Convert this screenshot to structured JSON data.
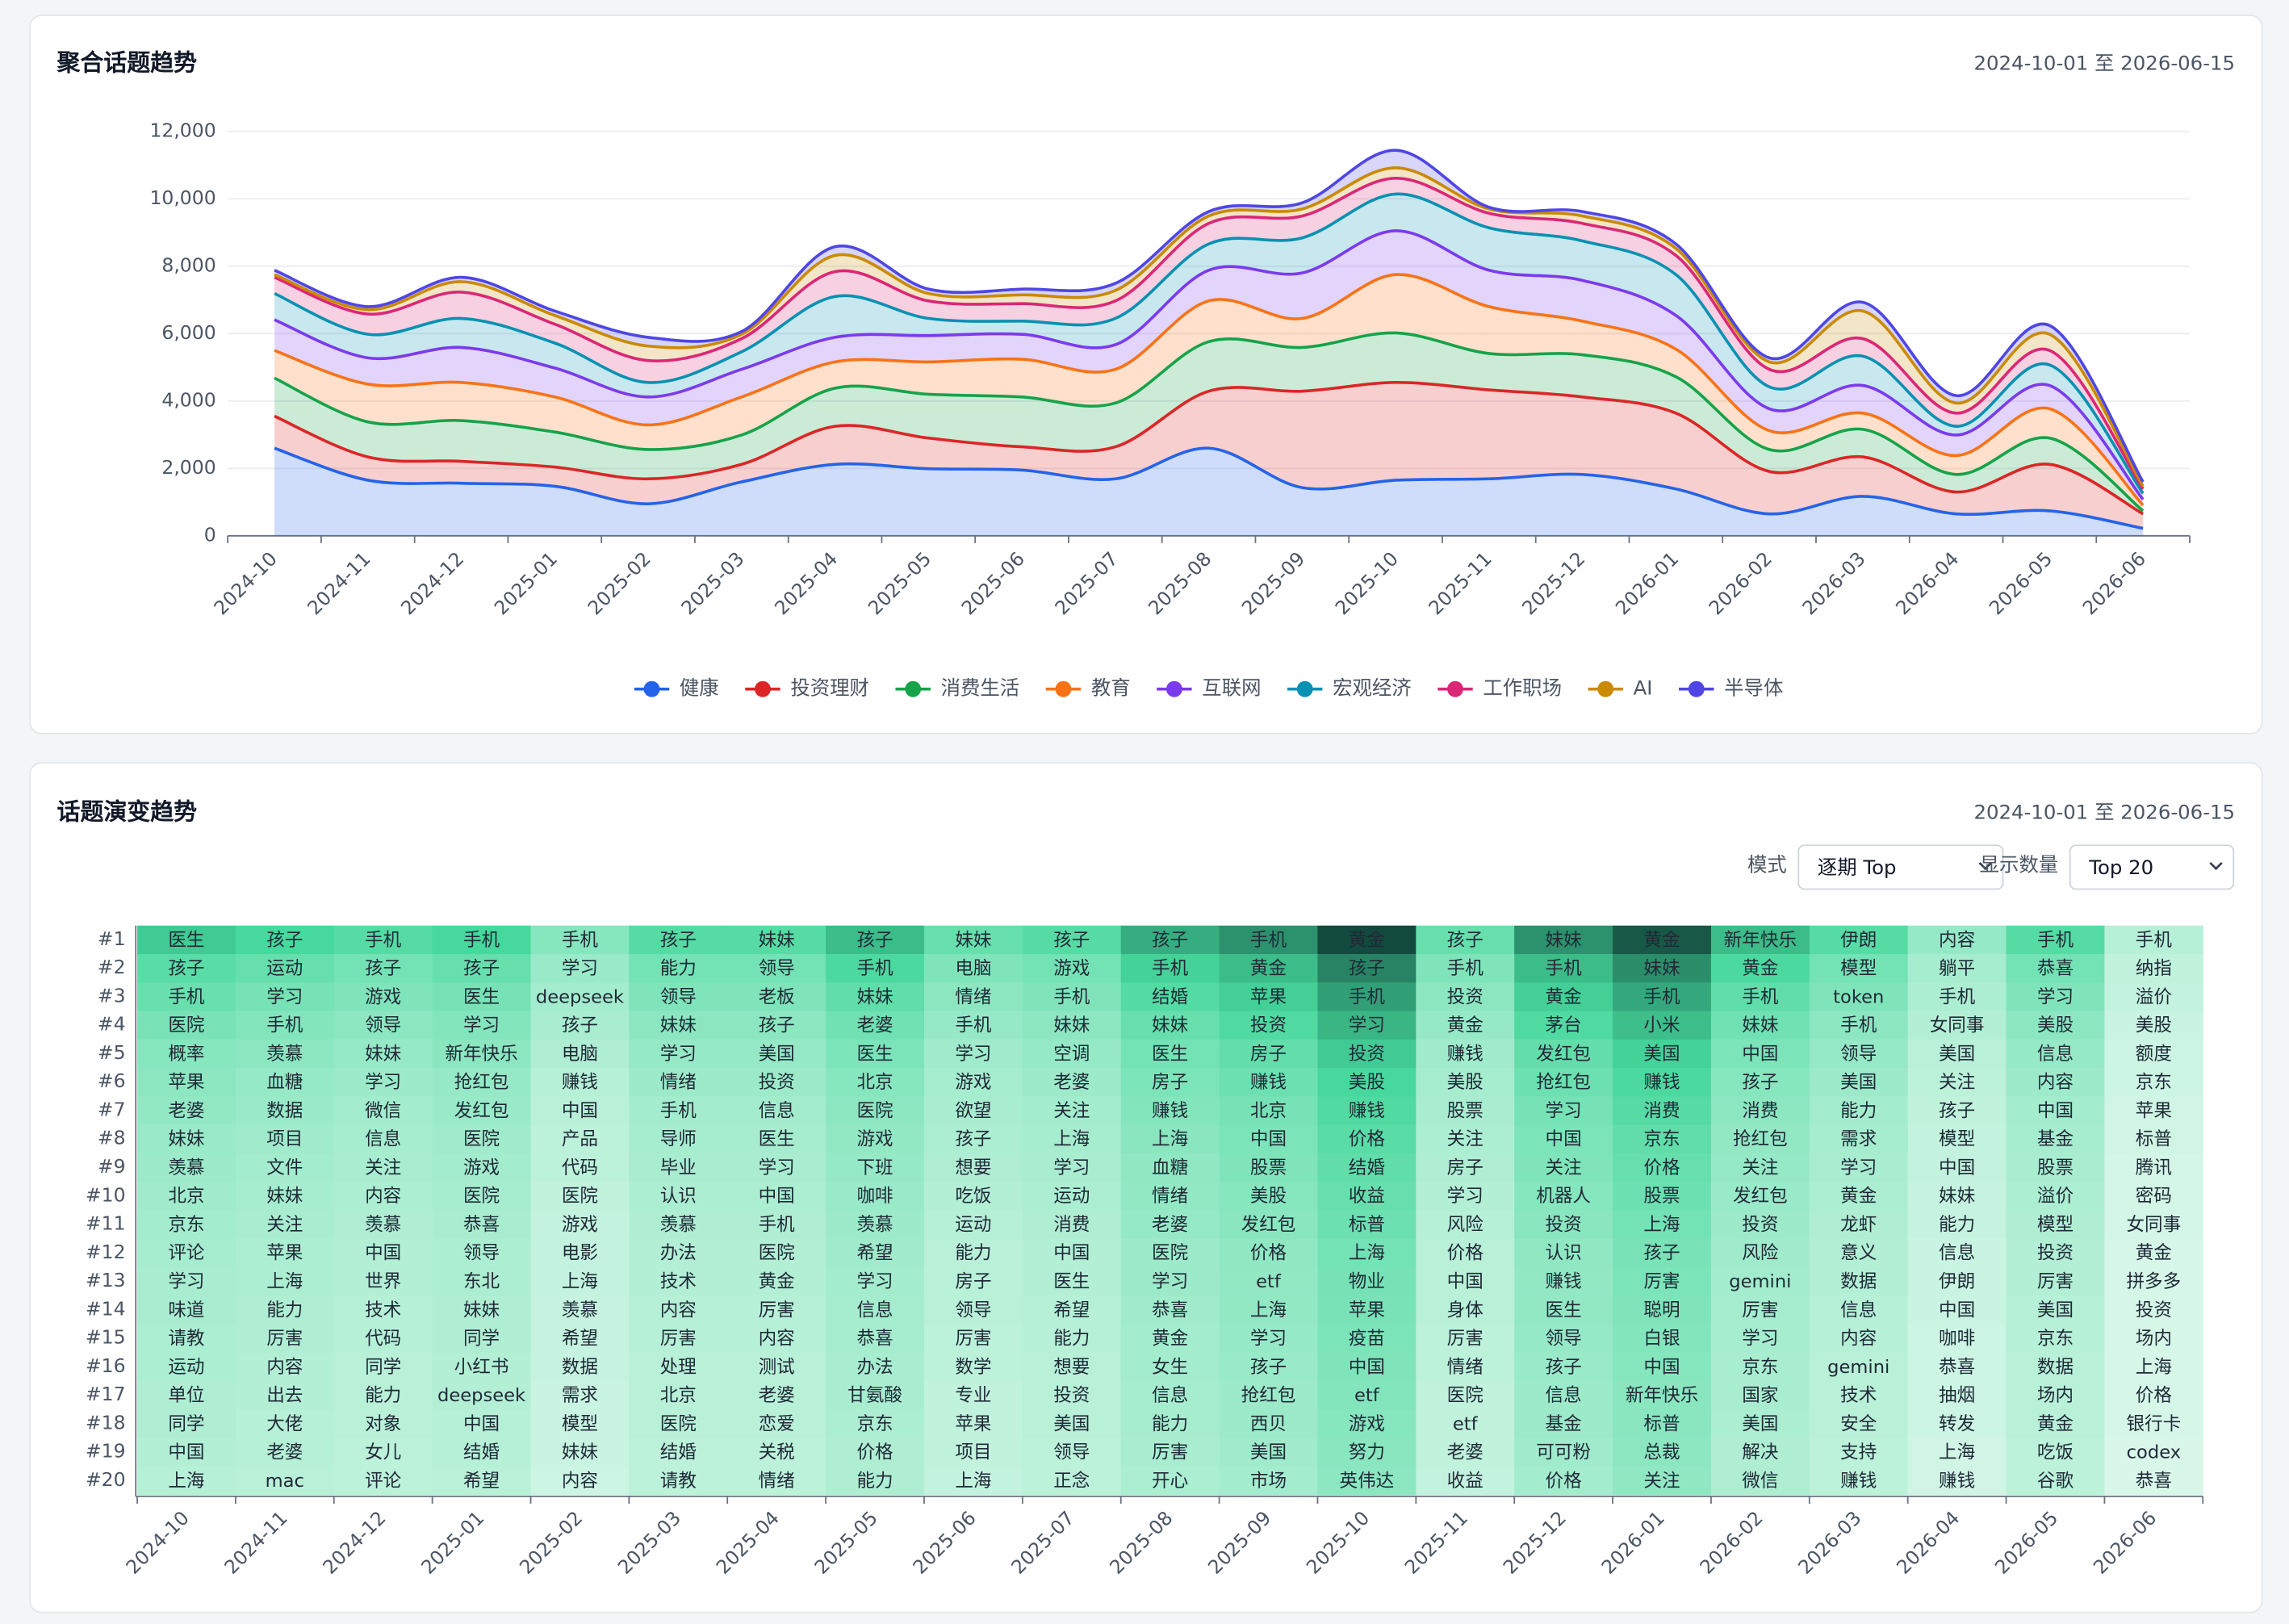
{
  "chart_data": [
    {
      "type": "area",
      "title": "聚合话题趋势",
      "date_range": "2024-10-01 至 2026-06-15",
      "stacked": true,
      "smooth": true,
      "grid": true,
      "legend": "bottom",
      "categories": [
        "2024-10",
        "2024-11",
        "2024-12",
        "2025-01",
        "2025-02",
        "2025-03",
        "2025-04",
        "2025-05",
        "2025-06",
        "2025-07",
        "2025-08",
        "2025-09",
        "2025-10",
        "2025-11",
        "2025-12",
        "2026-01",
        "2026-02",
        "2026-03",
        "2026-04",
        "2026-05",
        "2026-06"
      ],
      "ylim": [
        0,
        12000
      ],
      "yticks": [
        0,
        {
          "value": 2000,
          "label": "2,000"
        },
        {
          "value": 4000,
          "label": "4,000"
        },
        {
          "value": 6000,
          "label": "6,000"
        },
        {
          "value": 8000,
          "label": "8,000"
        },
        {
          "value": 10000,
          "label": "10,000"
        },
        {
          "value": 12000,
          "label": "12,000"
        }
      ],
      "series": [
        {
          "name": "健康",
          "color": "#2563eb",
          "values": [
            2600,
            1650,
            1560,
            1470,
            950,
            1600,
            2120,
            1990,
            1950,
            1690,
            2600,
            1430,
            1650,
            1690,
            1820,
            1390,
            650,
            1170,
            650,
            740,
            220
          ]
        },
        {
          "name": "投资理财",
          "color": "#dc2626",
          "values": [
            950,
            690,
            650,
            570,
            740,
            520,
            1130,
            910,
            690,
            950,
            1690,
            2860,
            2900,
            2640,
            2300,
            2250,
            1260,
            1170,
            650,
            1380,
            430
          ]
        },
        {
          "name": "消费生活",
          "color": "#16a34a",
          "values": [
            1130,
            1040,
            1210,
            1040,
            870,
            870,
            1130,
            1300,
            1480,
            1300,
            1470,
            1300,
            1470,
            1080,
            1250,
            1080,
            650,
            820,
            520,
            780,
            90
          ]
        },
        {
          "name": "教育",
          "color": "#f97316",
          "values": [
            820,
            1120,
            1130,
            1040,
            730,
            1130,
            780,
            960,
            1120,
            1000,
            1210,
            860,
            1730,
            1390,
            1000,
            820,
            560,
            480,
            560,
            870,
            170
          ]
        },
        {
          "name": "互联网",
          "color": "#7c3aed",
          "values": [
            910,
            780,
            1040,
            860,
            830,
            820,
            730,
            780,
            740,
            730,
            910,
            1350,
            1300,
            1080,
            1210,
            1000,
            650,
            820,
            610,
            690,
            170
          ]
        },
        {
          "name": "宏观经济",
          "color": "#0891b2",
          "values": [
            780,
            700,
            860,
            740,
            430,
            520,
            1210,
            510,
            390,
            780,
            780,
            1040,
            1090,
            1260,
            1170,
            1210,
            650,
            870,
            260,
            610,
            180
          ]
        },
        {
          "name": "工作职场",
          "color": "#db2777",
          "values": [
            480,
            600,
            780,
            560,
            650,
            390,
            740,
            520,
            520,
            520,
            610,
            650,
            470,
            430,
            520,
            570,
            520,
            520,
            390,
            430,
            130
          ]
        },
        {
          "name": "AI",
          "color": "#ca8a04",
          "values": [
            80,
            130,
            310,
            260,
            430,
            130,
            480,
            220,
            260,
            310,
            220,
            210,
            310,
            130,
            220,
            210,
            220,
            820,
            300,
            480,
            80
          ]
        },
        {
          "name": "半导体",
          "color": "#4f46e5",
          "values": [
            130,
            90,
            130,
            130,
            260,
            80,
            260,
            130,
            170,
            210,
            130,
            180,
            520,
            50,
            130,
            130,
            120,
            260,
            220,
            260,
            130
          ]
        }
      ]
    },
    {
      "type": "heatmap",
      "title": "话题演变趋势",
      "date_range": "2024-10-01 至 2026-06-15",
      "mode_label": "模式",
      "mode_value": "逐期 Top",
      "count_label": "显示数量",
      "count_value": "Top 20",
      "color_scale": [
        "#e6faf0",
        "#46d89c",
        "#124a3d"
      ],
      "x": [
        "2024-10",
        "2024-11",
        "2024-12",
        "2025-01",
        "2025-02",
        "2025-03",
        "2025-04",
        "2025-05",
        "2025-06",
        "2025-07",
        "2025-08",
        "2025-09",
        "2025-10",
        "2025-11",
        "2025-12",
        "2026-01",
        "2026-02",
        "2026-03",
        "2026-04",
        "2026-05",
        "2026-06"
      ],
      "y": [
        "#1",
        "#2",
        "#3",
        "#4",
        "#5",
        "#6",
        "#7",
        "#8",
        "#9",
        "#10",
        "#11",
        "#12",
        "#13",
        "#14",
        "#15",
        "#16",
        "#17",
        "#18",
        "#19",
        "#20"
      ],
      "cells": [
        [
          "医生",
          "孩子",
          "手机",
          "手机",
          "手机",
          "孩子",
          "妹妹",
          "孩子",
          "妹妹",
          "孩子",
          "孩子",
          "手机",
          "黄金",
          "孩子",
          "妹妹",
          "黄金",
          "新年快乐",
          "伊朗",
          "内容",
          "手机",
          "手机"
        ],
        [
          "孩子",
          "运动",
          "孩子",
          "孩子",
          "学习",
          "能力",
          "领导",
          "手机",
          "电脑",
          "游戏",
          "手机",
          "黄金",
          "孩子",
          "手机",
          "手机",
          "妹妹",
          "黄金",
          "模型",
          "躺平",
          "恭喜",
          "纳指"
        ],
        [
          "手机",
          "学习",
          "游戏",
          "医生",
          "deepseek",
          "领导",
          "老板",
          "妹妹",
          "情绪",
          "手机",
          "结婚",
          "苹果",
          "手机",
          "投资",
          "黄金",
          "手机",
          "手机",
          "token",
          "手机",
          "学习",
          "溢价"
        ],
        [
          "医院",
          "手机",
          "领导",
          "学习",
          "孩子",
          "妹妹",
          "孩子",
          "老婆",
          "手机",
          "妹妹",
          "妹妹",
          "投资",
          "学习",
          "黄金",
          "茅台",
          "小米",
          "妹妹",
          "手机",
          "女同事",
          "美股",
          "美股"
        ],
        [
          "概率",
          "羡慕",
          "妹妹",
          "新年快乐",
          "电脑",
          "学习",
          "美国",
          "医生",
          "学习",
          "空调",
          "医生",
          "房子",
          "投资",
          "赚钱",
          "发红包",
          "美国",
          "中国",
          "领导",
          "美国",
          "信息",
          "额度"
        ],
        [
          "苹果",
          "血糖",
          "学习",
          "抢红包",
          "赚钱",
          "情绪",
          "投资",
          "北京",
          "游戏",
          "老婆",
          "房子",
          "赚钱",
          "美股",
          "美股",
          "抢红包",
          "赚钱",
          "孩子",
          "美国",
          "关注",
          "内容",
          "京东"
        ],
        [
          "老婆",
          "数据",
          "微信",
          "发红包",
          "中国",
          "手机",
          "信息",
          "医院",
          "欲望",
          "关注",
          "赚钱",
          "北京",
          "赚钱",
          "股票",
          "学习",
          "消费",
          "消费",
          "能力",
          "孩子",
          "中国",
          "苹果"
        ],
        [
          "妹妹",
          "项目",
          "信息",
          "医院",
          "产品",
          "导师",
          "医生",
          "游戏",
          "孩子",
          "上海",
          "上海",
          "中国",
          "价格",
          "关注",
          "中国",
          "京东",
          "抢红包",
          "需求",
          "模型",
          "基金",
          "标普"
        ],
        [
          "羡慕",
          "文件",
          "关注",
          "游戏",
          "代码",
          "毕业",
          "学习",
          "下班",
          "想要",
          "学习",
          "血糖",
          "股票",
          "结婚",
          "房子",
          "关注",
          "价格",
          "关注",
          "学习",
          "中国",
          "股票",
          "腾讯"
        ],
        [
          "北京",
          "妹妹",
          "内容",
          "医院",
          "医院",
          "认识",
          "中国",
          "咖啡",
          "吃饭",
          "运动",
          "情绪",
          "美股",
          "收益",
          "学习",
          "机器人",
          "股票",
          "发红包",
          "黄金",
          "妹妹",
          "溢价",
          "密码"
        ],
        [
          "京东",
          "关注",
          "羡慕",
          "恭喜",
          "游戏",
          "羡慕",
          "手机",
          "羡慕",
          "运动",
          "消费",
          "老婆",
          "发红包",
          "标普",
          "风险",
          "投资",
          "上海",
          "投资",
          "龙虾",
          "能力",
          "模型",
          "女同事"
        ],
        [
          "评论",
          "苹果",
          "中国",
          "领导",
          "电影",
          "办法",
          "医院",
          "希望",
          "能力",
          "中国",
          "医院",
          "价格",
          "上海",
          "价格",
          "认识",
          "孩子",
          "风险",
          "意义",
          "信息",
          "投资",
          "黄金"
        ],
        [
          "学习",
          "上海",
          "世界",
          "东北",
          "上海",
          "技术",
          "黄金",
          "学习",
          "房子",
          "医生",
          "学习",
          "etf",
          "物业",
          "中国",
          "赚钱",
          "厉害",
          "gemini",
          "数据",
          "伊朗",
          "厉害",
          "拼多多"
        ],
        [
          "味道",
          "能力",
          "技术",
          "妹妹",
          "羡慕",
          "内容",
          "厉害",
          "信息",
          "领导",
          "希望",
          "恭喜",
          "上海",
          "苹果",
          "身体",
          "医生",
          "聪明",
          "厉害",
          "信息",
          "中国",
          "美国",
          "投资"
        ],
        [
          "请教",
          "厉害",
          "代码",
          "同学",
          "希望",
          "厉害",
          "内容",
          "恭喜",
          "厉害",
          "能力",
          "黄金",
          "学习",
          "疫苗",
          "厉害",
          "领导",
          "白银",
          "学习",
          "内容",
          "咖啡",
          "京东",
          "场内"
        ],
        [
          "运动",
          "内容",
          "同学",
          "小红书",
          "数据",
          "处理",
          "测试",
          "办法",
          "数学",
          "想要",
          "女生",
          "孩子",
          "中国",
          "情绪",
          "孩子",
          "中国",
          "京东",
          "gemini",
          "恭喜",
          "数据",
          "上海"
        ],
        [
          "单位",
          "出去",
          "能力",
          "deepseek",
          "需求",
          "北京",
          "老婆",
          "甘氨酸",
          "专业",
          "投资",
          "信息",
          "抢红包",
          "etf",
          "医院",
          "信息",
          "新年快乐",
          "国家",
          "技术",
          "抽烟",
          "场内",
          "价格"
        ],
        [
          "同学",
          "大佬",
          "对象",
          "中国",
          "模型",
          "医院",
          "恋爱",
          "京东",
          "苹果",
          "美国",
          "能力",
          "西贝",
          "游戏",
          "etf",
          "基金",
          "标普",
          "美国",
          "安全",
          "转发",
          "黄金",
          "银行卡"
        ],
        [
          "中国",
          "老婆",
          "女儿",
          "结婚",
          "妹妹",
          "结婚",
          "关税",
          "价格",
          "项目",
          "领导",
          "厉害",
          "美国",
          "努力",
          "老婆",
          "可可粉",
          "总裁",
          "解决",
          "支持",
          "上海",
          "吃饭",
          "codex"
        ],
        [
          "上海",
          "mac",
          "评论",
          "希望",
          "内容",
          "请教",
          "情绪",
          "能力",
          "上海",
          "正念",
          "开心",
          "市场",
          "英伟达",
          "收益",
          "价格",
          "关注",
          "微信",
          "赚钱",
          "赚钱",
          "谷歌",
          "恭喜"
        ]
      ],
      "values": [
        [
          55,
          50,
          45,
          50,
          30,
          45,
          45,
          60,
          40,
          45,
          65,
          75,
          100,
          40,
          75,
          95,
          60,
          45,
          25,
          45,
          15
        ],
        [
          44,
          40,
          36,
          40,
          24,
          36,
          36,
          48,
          32,
          36,
          52,
          60,
          80,
          32,
          60,
          76,
          48,
          36,
          20,
          36,
          12
        ],
        [
          39,
          35,
          32,
          35,
          21,
          32,
          32,
          42,
          28,
          32,
          46,
          53,
          70,
          28,
          53,
          67,
          42,
          32,
          18,
          32,
          11
        ],
        [
          34,
          31,
          28,
          31,
          19,
          28,
          28,
          37,
          25,
          28,
          40,
          47,
          62,
          25,
          47,
          59,
          37,
          28,
          16,
          28,
          9
        ],
        [
          30,
          28,
          25,
          28,
          17,
          25,
          25,
          33,
          22,
          25,
          36,
          41,
          55,
          22,
          41,
          52,
          33,
          25,
          14,
          25,
          8
        ],
        [
          28,
          25,
          23,
          25,
          15,
          23,
          23,
          30,
          20,
          23,
          33,
          38,
          50,
          20,
          38,
          48,
          30,
          23,
          13,
          23,
          8
        ],
        [
          26,
          24,
          21,
          24,
          14,
          21,
          21,
          28,
          19,
          21,
          31,
          35,
          47,
          19,
          35,
          45,
          28,
          21,
          12,
          21,
          7
        ],
        [
          24,
          22,
          20,
          22,
          13,
          20,
          20,
          26,
          18,
          20,
          29,
          33,
          44,
          18,
          33,
          42,
          26,
          20,
          11,
          20,
          7
        ],
        [
          23,
          21,
          19,
          21,
          13,
          19,
          19,
          25,
          17,
          19,
          27,
          32,
          42,
          17,
          32,
          40,
          25,
          19,
          11,
          19,
          6
        ],
        [
          22,
          20,
          18,
          20,
          12,
          18,
          18,
          24,
          16,
          18,
          26,
          30,
          40,
          16,
          30,
          38,
          24,
          18,
          10,
          18,
          6
        ],
        [
          21,
          19,
          17,
          19,
          11,
          17,
          17,
          23,
          15,
          17,
          25,
          29,
          38,
          15,
          29,
          36,
          23,
          17,
          10,
          17,
          6
        ],
        [
          20,
          18,
          16,
          18,
          11,
          16,
          16,
          22,
          14,
          16,
          23,
          27,
          36,
          14,
          27,
          34,
          22,
          16,
          9,
          16,
          5
        ],
        [
          19,
          18,
          16,
          18,
          11,
          16,
          16,
          21,
          14,
          16,
          23,
          26,
          35,
          14,
          26,
          33,
          21,
          16,
          9,
          16,
          5
        ],
        [
          19,
          17,
          15,
          17,
          10,
          15,
          15,
          20,
          14,
          15,
          22,
          26,
          34,
          14,
          26,
          32,
          20,
          15,
          9,
          15,
          5
        ],
        [
          18,
          17,
          15,
          17,
          10,
          15,
          15,
          20,
          13,
          15,
          21,
          25,
          33,
          13,
          25,
          31,
          20,
          15,
          8,
          15,
          5
        ],
        [
          18,
          16,
          14,
          16,
          10,
          14,
          14,
          19,
          13,
          14,
          21,
          24,
          32,
          13,
          24,
          30,
          19,
          14,
          8,
          14,
          5
        ],
        [
          17,
          16,
          14,
          16,
          9,
          14,
          14,
          19,
          12,
          14,
          20,
          23,
          31,
          12,
          23,
          29,
          19,
          14,
          8,
          14,
          5
        ],
        [
          17,
          15,
          14,
          15,
          9,
          14,
          14,
          18,
          12,
          14,
          20,
          23,
          30,
          12,
          23,
          29,
          18,
          14,
          8,
          14,
          5
        ],
        [
          16,
          15,
          13,
          15,
          9,
          13,
          13,
          17,
          12,
          13,
          19,
          22,
          29,
          12,
          22,
          28,
          17,
          13,
          7,
          13,
          4
        ],
        [
          15,
          14,
          13,
          14,
          8,
          13,
          13,
          17,
          11,
          13,
          18,
          21,
          28,
          11,
          21,
          27,
          17,
          13,
          7,
          13,
          4
        ]
      ]
    }
  ]
}
